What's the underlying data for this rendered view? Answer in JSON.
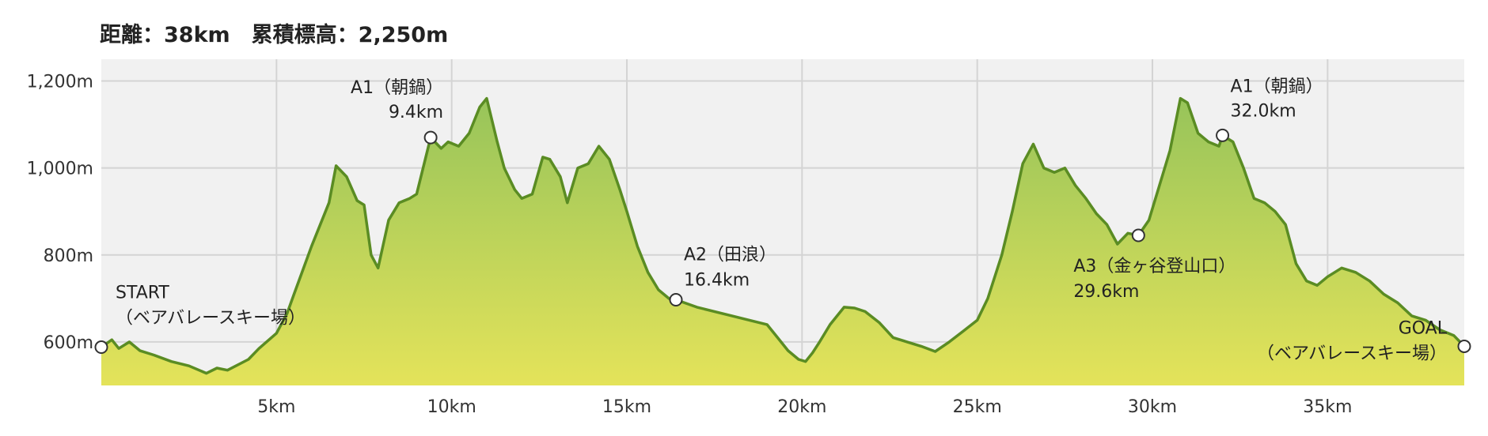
{
  "header": {
    "title": "距離：38km　累積標高：2,250m"
  },
  "chart_data": {
    "type": "area",
    "title": "距離：38km　累積標高：2,250m",
    "xlabel": "",
    "ylabel": "",
    "x_unit": "km",
    "xlim": [
      0,
      38.9
    ],
    "ylim": [
      500,
      1250
    ],
    "x_ticks": [
      {
        "value": 5,
        "label": "5km"
      },
      {
        "value": 10,
        "label": "10km"
      },
      {
        "value": 15,
        "label": "15km"
      },
      {
        "value": 20,
        "label": "20km"
      },
      {
        "value": 25,
        "label": "25km"
      },
      {
        "value": 30,
        "label": "30km"
      },
      {
        "value": 35,
        "label": "35km"
      }
    ],
    "y_ticks": [
      {
        "value": 600,
        "label": "600m"
      },
      {
        "value": 800,
        "label": "800m"
      },
      {
        "value": 1000,
        "label": "1,000m"
      },
      {
        "value": 1200,
        "label": "1,200m"
      }
    ],
    "grid": true,
    "colors": {
      "line": "#5a8c23",
      "fill_top": "#97c45a",
      "fill_bottom": "#e4e35a",
      "plot_bg": "#f1f1f1"
    },
    "series": [
      {
        "x": [
          0,
          0.3,
          0.5,
          0.8,
          1.1,
          1.5,
          2.0,
          2.5,
          3.0,
          3.3,
          3.6,
          4.2,
          4.5,
          5.0,
          5.3,
          5.5,
          6.0,
          6.5,
          6.7,
          7.0,
          7.3,
          7.5,
          7.7,
          7.9,
          8.2,
          8.5,
          8.8,
          9.0,
          9.4,
          9.7,
          9.9,
          10.2,
          10.5,
          10.8,
          11.0,
          11.3,
          11.5,
          11.8,
          12.0,
          12.3,
          12.6,
          12.8,
          13.1,
          13.3,
          13.6,
          13.9,
          14.2,
          14.5,
          14.8,
          15.0,
          15.3,
          15.6,
          15.9,
          16.2,
          16.4,
          17.0,
          18.0,
          18.5,
          19.0,
          19.3,
          19.6,
          19.9,
          20.1,
          20.3,
          20.5,
          20.8,
          21.2,
          21.5,
          21.8,
          22.2,
          22.6,
          23.0,
          23.4,
          23.8,
          24.2,
          24.6,
          25.0,
          25.3,
          25.7,
          26.0,
          26.3,
          26.6,
          26.9,
          27.2,
          27.5,
          27.8,
          28.1,
          28.4,
          28.7,
          29.0,
          29.3,
          29.6,
          29.9,
          30.2,
          30.5,
          30.8,
          31.0,
          31.3,
          31.6,
          31.9,
          32.0,
          32.3,
          32.6,
          32.9,
          33.2,
          33.5,
          33.8,
          34.1,
          34.4,
          34.7,
          35.0,
          35.4,
          35.8,
          36.2,
          36.6,
          37.0,
          37.4,
          37.8,
          38.2,
          38.6,
          38.9
        ],
        "y": [
          588,
          605,
          585,
          600,
          580,
          570,
          555,
          545,
          528,
          540,
          535,
          560,
          585,
          620,
          665,
          710,
          820,
          920,
          1005,
          980,
          925,
          915,
          800,
          770,
          880,
          920,
          930,
          940,
          1070,
          1045,
          1060,
          1050,
          1080,
          1140,
          1160,
          1060,
          1000,
          950,
          930,
          940,
          1025,
          1020,
          980,
          920,
          1000,
          1010,
          1050,
          1020,
          950,
          900,
          820,
          760,
          720,
          700,
          697,
          680,
          660,
          650,
          640,
          610,
          580,
          560,
          555,
          575,
          600,
          640,
          680,
          678,
          670,
          645,
          610,
          600,
          590,
          578,
          600,
          625,
          650,
          700,
          800,
          900,
          1010,
          1055,
          1000,
          990,
          1000,
          960,
          930,
          895,
          870,
          825,
          850,
          845,
          880,
          960,
          1040,
          1160,
          1150,
          1080,
          1060,
          1050,
          1075,
          1060,
          1000,
          930,
          920,
          900,
          870,
          780,
          740,
          730,
          750,
          770,
          760,
          740,
          710,
          690,
          660,
          650,
          628,
          615,
          590
        ]
      }
    ],
    "markers": [
      {
        "x": 0,
        "y": 588,
        "label": [
          "START",
          "（ベアバレースキー場）"
        ]
      },
      {
        "x": 9.4,
        "y": 1070,
        "label": [
          "A1（朝鍋）",
          "9.4km"
        ]
      },
      {
        "x": 16.4,
        "y": 697,
        "label": [
          "A2（田浪）",
          "16.4km"
        ]
      },
      {
        "x": 29.6,
        "y": 845,
        "label": [
          "A3（金ヶ谷登山口）",
          "29.6km"
        ]
      },
      {
        "x": 32.0,
        "y": 1075,
        "label": [
          "A1（朝鍋）",
          "32.0km"
        ]
      },
      {
        "x": 38.9,
        "y": 590,
        "label": [
          "GOAL",
          "（ベアバレースキー場）"
        ]
      }
    ]
  }
}
